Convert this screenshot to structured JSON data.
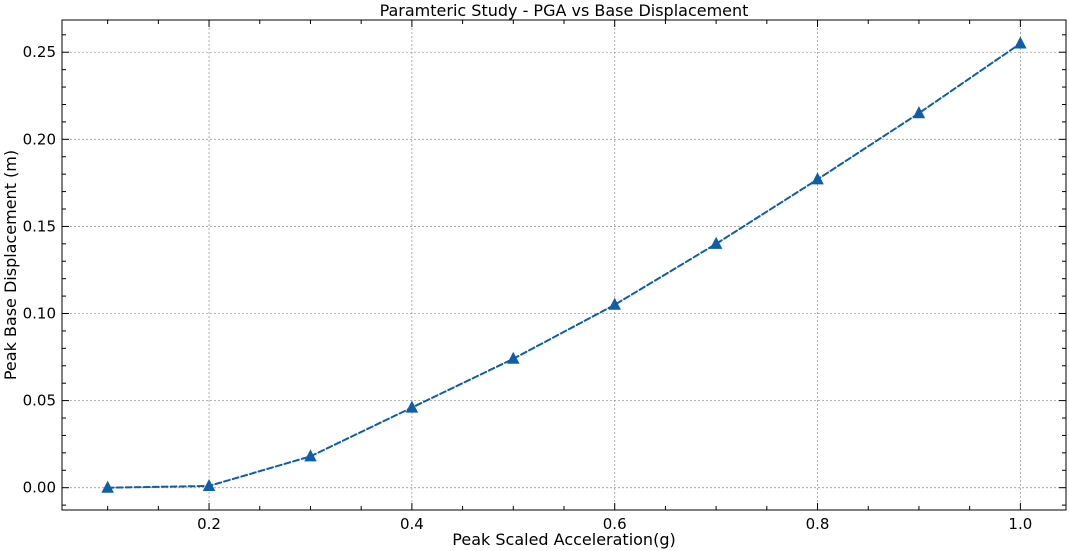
{
  "chart_data": {
    "type": "line",
    "title": "Paramteric Study - PGA vs Base Displacement",
    "xlabel": "Peak Scaled Acceleration(g)",
    "ylabel": "Peak Base Displacement (m)",
    "xlim": [
      0.055,
      1.045
    ],
    "ylim": [
      -0.0128,
      0.2685
    ],
    "xticks": [
      0.2,
      0.4,
      0.6,
      0.8,
      1.0
    ],
    "xtick_labels": [
      "0.2",
      "0.4",
      "0.6",
      "0.8",
      "1.0"
    ],
    "yticks": [
      0.0,
      0.05,
      0.1,
      0.15,
      0.2,
      0.25
    ],
    "ytick_labels": [
      "0.00",
      "0.05",
      "0.10",
      "0.15",
      "0.20",
      "0.25"
    ],
    "grid": true,
    "line_style": "dashed",
    "marker": "triangle",
    "color": "#0f5ea8",
    "x": [
      0.1,
      0.2,
      0.3,
      0.4,
      0.5,
      0.6,
      0.7,
      0.8,
      0.9,
      1.0
    ],
    "series": [
      {
        "values": [
          0.0,
          0.001,
          0.018,
          0.046,
          0.074,
          0.105,
          0.14,
          0.177,
          0.215,
          0.255
        ]
      }
    ]
  }
}
